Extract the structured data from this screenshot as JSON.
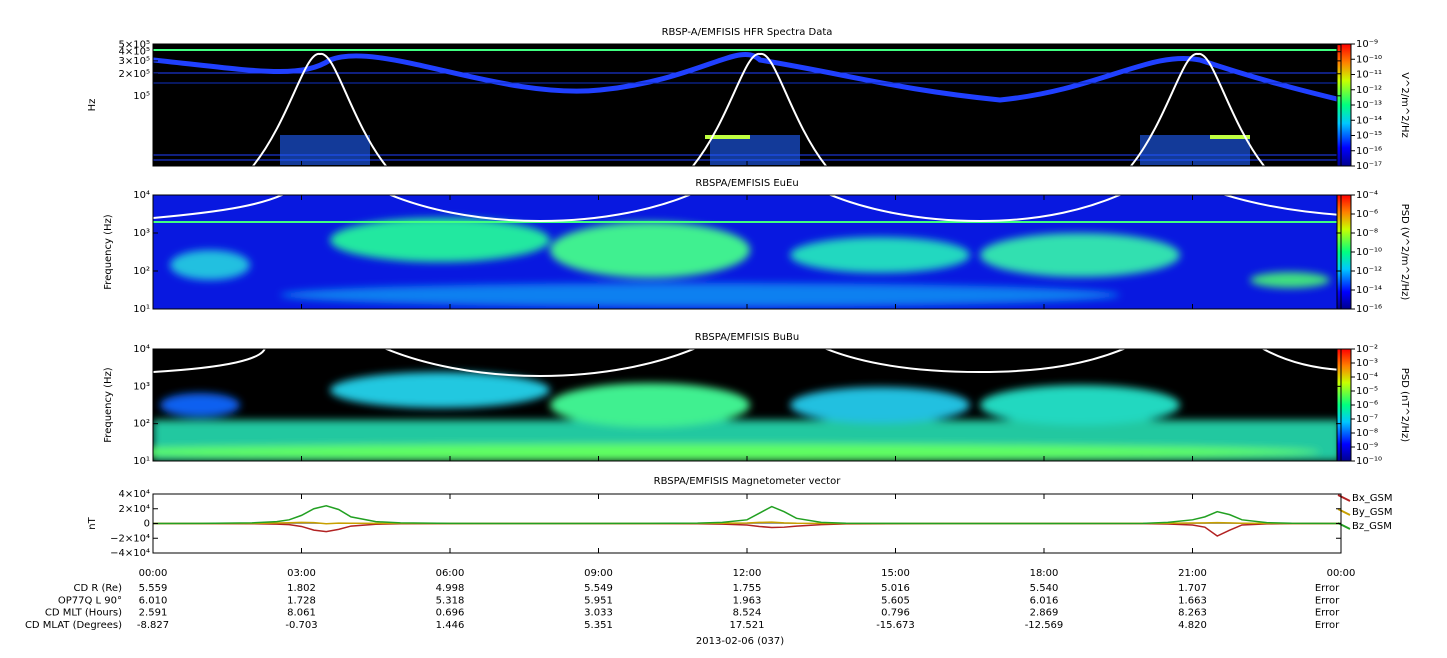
{
  "chart_data": [
    {
      "type": "spectrogram",
      "title": "RBSP-A/EMFISIS  HFR Spectra Data",
      "ylabel": "Hz",
      "log_y": true,
      "ylim": [
        11000,
        510000
      ],
      "yticks": [
        {
          "value": 500000,
          "label": "5×10⁵"
        },
        {
          "value": 400000,
          "label": "4×10⁵"
        },
        {
          "value": 300000,
          "label": "3×10⁵"
        },
        {
          "value": 200000,
          "label": "2×10⁵"
        },
        {
          "value": 100000,
          "label": "10⁵"
        }
      ],
      "colorbar": {
        "label": "V^2/m^2/Hz",
        "lim": [
          1e-17,
          1e-09
        ],
        "ticks": [
          {
            "value": 1e-09,
            "label": "10⁻⁹"
          },
          {
            "value": 1e-10,
            "label": "10⁻¹⁰"
          },
          {
            "value": 1e-11,
            "label": "10⁻¹¹"
          },
          {
            "value": 1e-12,
            "label": "10⁻¹²"
          },
          {
            "value": 1e-13,
            "label": "10⁻¹³"
          },
          {
            "value": 1e-14,
            "label": "10⁻¹⁴"
          },
          {
            "value": 1e-15,
            "label": "10⁻¹⁵"
          },
          {
            "value": 1e-16,
            "label": "10⁻¹⁶"
          },
          {
            "value": 1e-17,
            "label": "10⁻¹⁷"
          }
        ]
      }
    },
    {
      "type": "spectrogram",
      "title": "RBSPA/EMFISIS  EuEu",
      "ylabel": "Frequency (Hz)",
      "log_y": true,
      "ylim": [
        10,
        10000
      ],
      "yticks": [
        {
          "value": 10000,
          "label": "10⁴"
        },
        {
          "value": 1000,
          "label": "10³"
        },
        {
          "value": 100,
          "label": "10²"
        },
        {
          "value": 10,
          "label": "10¹"
        }
      ],
      "colorbar": {
        "label": "PSD (V^2/m^2/Hz)",
        "lim": [
          1e-16,
          0.0001
        ],
        "ticks": [
          {
            "value": 0.0001,
            "label": "10⁻⁴"
          },
          {
            "value": 1e-06,
            "label": "10⁻⁶"
          },
          {
            "value": 1e-08,
            "label": "10⁻⁸"
          },
          {
            "value": 1e-10,
            "label": "10⁻¹⁰"
          },
          {
            "value": 1e-12,
            "label": "10⁻¹²"
          },
          {
            "value": 1e-14,
            "label": "10⁻¹⁴"
          },
          {
            "value": 1e-16,
            "label": "10⁻¹⁶"
          }
        ]
      }
    },
    {
      "type": "spectrogram",
      "title": "RBSPA/EMFISIS  BuBu",
      "ylabel": "Frequency (Hz)",
      "log_y": true,
      "ylim": [
        10,
        10000
      ],
      "yticks": [
        {
          "value": 10000,
          "label": "10⁴"
        },
        {
          "value": 1000,
          "label": "10³"
        },
        {
          "value": 100,
          "label": "10²"
        },
        {
          "value": 10,
          "label": "10¹"
        }
      ],
      "colorbar": {
        "label": "PSD (nT^2/Hz)",
        "lim": [
          1e-10,
          0.01
        ],
        "ticks": [
          {
            "value": 0.01,
            "label": "10⁻²"
          },
          {
            "value": 0.001,
            "label": "10⁻³"
          },
          {
            "value": 0.0001,
            "label": "10⁻⁴"
          },
          {
            "value": 1e-05,
            "label": "10⁻⁵"
          },
          {
            "value": 1e-06,
            "label": "10⁻⁶"
          },
          {
            "value": 1e-07,
            "label": "10⁻⁷"
          },
          {
            "value": 1e-08,
            "label": "10⁻⁸"
          },
          {
            "value": 1e-09,
            "label": "10⁻⁹"
          },
          {
            "value": 1e-10,
            "label": "10⁻¹⁰"
          }
        ]
      }
    },
    {
      "type": "line",
      "title": "RBSPA/EMFISIS  Magnetometer vector",
      "ylabel": "nT",
      "xlim": [
        0,
        24
      ],
      "xticks": [
        {
          "value": 0,
          "label": "00:00"
        },
        {
          "value": 3,
          "label": "03:00"
        },
        {
          "value": 6,
          "label": "06:00"
        },
        {
          "value": 9,
          "label": "09:00"
        },
        {
          "value": 12,
          "label": "12:00"
        },
        {
          "value": 15,
          "label": "15:00"
        },
        {
          "value": 18,
          "label": "18:00"
        },
        {
          "value": 21,
          "label": "21:00"
        },
        {
          "value": 24,
          "label": "00:00"
        }
      ],
      "ylim": [
        -40000,
        40000
      ],
      "yticks": [
        {
          "value": 40000,
          "label": "4×10⁴"
        },
        {
          "value": 20000,
          "label": "2×10⁴"
        },
        0,
        {
          "value": -20000,
          "label": "−2×10⁴"
        },
        {
          "value": -40000,
          "label": "−4×10⁴"
        }
      ],
      "x": [
        0,
        1,
        2,
        2.5,
        2.75,
        3,
        3.25,
        3.5,
        3.75,
        4,
        4.5,
        5,
        6,
        8,
        10,
        11,
        11.5,
        12,
        12.25,
        12.5,
        12.75,
        13,
        13.5,
        14,
        16,
        18,
        20,
        20.5,
        21,
        21.25,
        21.5,
        21.75,
        22,
        22.5,
        23,
        24
      ],
      "series": [
        {
          "name": "Bx_GSM",
          "color": "#b22222",
          "values": [
            0,
            -100,
            -300,
            -800,
            -1500,
            -4000,
            -9000,
            -11000,
            -8000,
            -3500,
            -1000,
            -300,
            -100,
            0,
            -100,
            -300,
            -800,
            -2000,
            -4000,
            -5500,
            -5000,
            -3500,
            -1500,
            -500,
            0,
            0,
            -200,
            -700,
            -2000,
            -5000,
            -17000,
            -9000,
            -2000,
            -500,
            -100,
            0
          ]
        },
        {
          "name": "By_GSM",
          "color": "#c8a000",
          "values": [
            0,
            0,
            200,
            600,
            1000,
            1500,
            1200,
            -300,
            500,
            400,
            200,
            100,
            0,
            0,
            0,
            100,
            300,
            700,
            1500,
            1800,
            800,
            300,
            100,
            0,
            0,
            0,
            100,
            300,
            600,
            900,
            1200,
            800,
            400,
            100,
            0,
            0
          ]
        },
        {
          "name": "Bz_GSM",
          "color": "#22a022",
          "values": [
            0,
            100,
            800,
            2500,
            5000,
            11000,
            20000,
            24000,
            19000,
            9000,
            2500,
            800,
            100,
            0,
            100,
            500,
            1500,
            5000,
            14000,
            23000,
            16000,
            7000,
            1500,
            400,
            0,
            0,
            200,
            1500,
            5000,
            9000,
            16000,
            12000,
            5000,
            1200,
            300,
            0
          ]
        }
      ]
    }
  ],
  "ephemeris": [
    {
      "label": "CD R (Re)",
      "values": [
        "5.559",
        "1.802",
        "4.998",
        "5.549",
        "1.755",
        "5.016",
        "5.540",
        "1.707",
        "Error"
      ]
    },
    {
      "label": "OP77Q L 90°",
      "values": [
        "6.010",
        "1.728",
        "5.318",
        "5.951",
        "1.963",
        "5.605",
        "6.016",
        "1.663",
        "Error"
      ]
    },
    {
      "label": "CD MLT (Hours)",
      "values": [
        "2.591",
        "8.061",
        "0.696",
        "3.033",
        "8.524",
        "0.796",
        "2.869",
        "8.263",
        "Error"
      ]
    },
    {
      "label": "CD MLAT (Degrees)",
      "values": [
        "-8.827",
        "-0.703",
        "1.446",
        "5.351",
        "17.521",
        "-15.673",
        "-12.569",
        "4.820",
        "Error"
      ]
    }
  ],
  "date": "2013-02-06 (037)"
}
